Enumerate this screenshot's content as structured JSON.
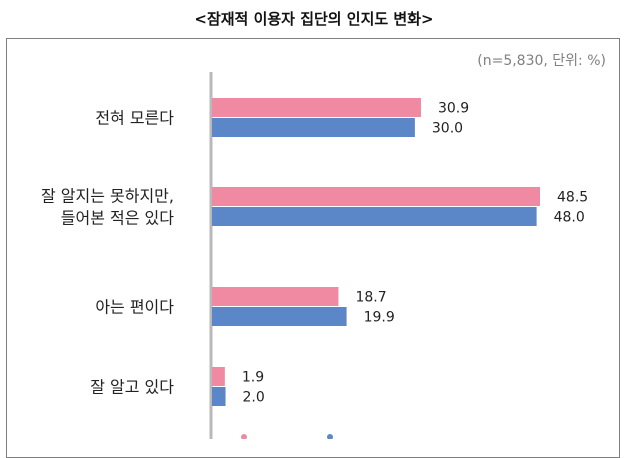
{
  "title": "<잠재적 이용자 집단의 인지도 변화>",
  "unit_note": "(n=5,830, 단위: %)",
  "colors": {
    "series_1": "#ef8aa2",
    "series_2": "#5b86c8",
    "axis": "#b9b9b9"
  },
  "chart_data": {
    "type": "bar",
    "orientation": "horizontal",
    "categories": [
      [
        "전혀 모른다"
      ],
      [
        "잘 알지는 못하지만,",
        "들어본 적은 있다"
      ],
      [
        "아는 편이다"
      ],
      [
        "잘 알고 있다"
      ]
    ],
    "series": [
      {
        "values": [
          30.9,
          48.5,
          18.7,
          1.9
        ],
        "color": "#ef8aa2"
      },
      {
        "values": [
          30.0,
          48.0,
          19.9,
          2.0
        ],
        "color": "#5b86c8"
      }
    ],
    "xlim": [
      0,
      55
    ],
    "legend_position": "bottom",
    "grid": false
  }
}
